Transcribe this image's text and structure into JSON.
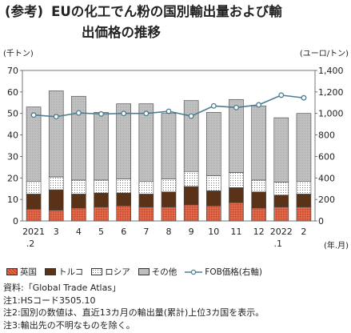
{
  "title": {
    "prefix": "(参考)",
    "line1": "EUの化工でん粉の国別輸出量および輸",
    "line2": "出価格の推移"
  },
  "colors": {
    "uk": "#d9583b",
    "turkey": "#5a3218",
    "russia": "#ffffff",
    "other": "#bdbdbd",
    "fob": "#4d7d91"
  },
  "chart_data": {
    "type": "bar",
    "stacked": true,
    "categories": [
      "2021.2",
      "3",
      "4",
      "5",
      "6",
      "7",
      "8",
      "9",
      "10",
      "11",
      "12",
      "2022.1",
      "2"
    ],
    "x_tick_labels": [
      {
        "top": "2021",
        "bottom": ".2"
      },
      {
        "top": "3",
        "bottom": ""
      },
      {
        "top": "4",
        "bottom": ""
      },
      {
        "top": "5",
        "bottom": ""
      },
      {
        "top": "6",
        "bottom": ""
      },
      {
        "top": "7",
        "bottom": ""
      },
      {
        "top": "8",
        "bottom": ""
      },
      {
        "top": "9",
        "bottom": ""
      },
      {
        "top": "10",
        "bottom": ""
      },
      {
        "top": "11",
        "bottom": ""
      },
      {
        "top": "12",
        "bottom": ""
      },
      {
        "top": "2022",
        "bottom": ".1"
      },
      {
        "top": "2",
        "bottom": ""
      }
    ],
    "xlabel": "(年.月)",
    "y_left_label": "(千トン)",
    "y_right_label": "(ユーロ/トン)",
    "ylim_left": [
      0,
      70
    ],
    "ylim_right": [
      0,
      1400
    ],
    "y_left_ticks": [
      0,
      10,
      20,
      30,
      40,
      50,
      60,
      70
    ],
    "y_right_ticks": [
      "0",
      "200",
      "400",
      "600",
      "800",
      "1,000",
      "1,200",
      "1,400"
    ],
    "grid": false,
    "legend_position": "bottom",
    "series": [
      {
        "name": "英国",
        "values": [
          5.5,
          5.0,
          6.0,
          6.5,
          7.0,
          6.5,
          6.5,
          7.5,
          7.0,
          8.5,
          6.0,
          6.5,
          6.5
        ]
      },
      {
        "name": "トルコ",
        "values": [
          7.0,
          9.5,
          6.5,
          6.5,
          6.0,
          6.0,
          7.0,
          8.5,
          7.0,
          7.0,
          7.5,
          5.5,
          6.0
        ]
      },
      {
        "name": "ロシア",
        "values": [
          6.0,
          6.0,
          6.5,
          6.0,
          6.5,
          6.0,
          6.0,
          7.0,
          7.0,
          7.0,
          5.5,
          6.0,
          6.0
        ]
      },
      {
        "name": "その他",
        "values": [
          34.5,
          40.0,
          39.0,
          31.5,
          35.0,
          36.0,
          30.5,
          33.0,
          29.5,
          34.0,
          34.5,
          30.0,
          31.5
        ]
      }
    ],
    "line_series": {
      "name": "FOB価格(右軸)",
      "axis": "right",
      "values": [
        985,
        970,
        1005,
        995,
        1000,
        1000,
        1020,
        975,
        1070,
        1055,
        1080,
        1170,
        1145
      ]
    }
  },
  "legend": {
    "uk": "英国",
    "turkey": "トルコ",
    "russia": "ロシア",
    "other": "その他",
    "fob": "FOB価格(右軸)"
  },
  "notes": [
    "資料:「Global Trade Atlas」",
    "注1:HSコード3505.10",
    "注2:国別の数値は、直近13カ月の輸出量(累計)上位3カ国を表示。",
    "注3:輸出先の不明なものを除く。"
  ]
}
